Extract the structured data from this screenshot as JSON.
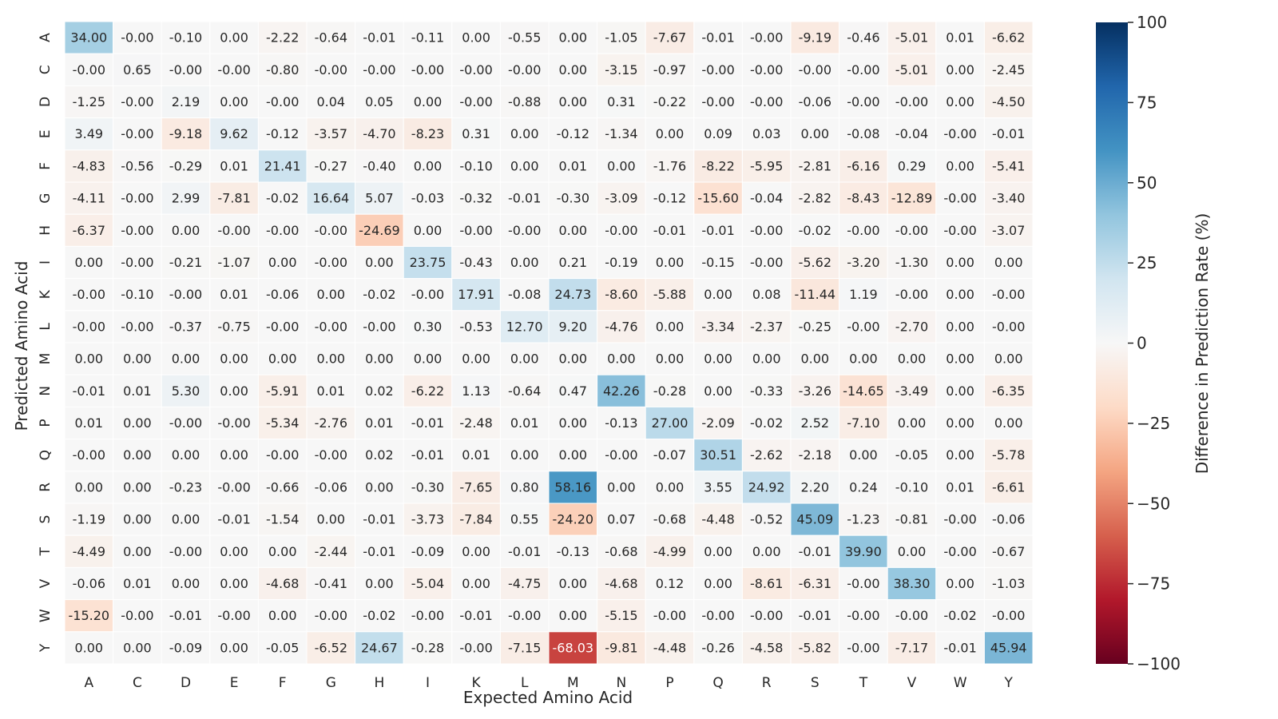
{
  "chart_data": {
    "type": "heatmap",
    "xlabel": "Expected Amino Acid",
    "ylabel": "Predicted Amino Acid",
    "x_categories": [
      "A",
      "C",
      "D",
      "E",
      "F",
      "G",
      "H",
      "I",
      "K",
      "L",
      "M",
      "N",
      "P",
      "Q",
      "R",
      "S",
      "T",
      "V",
      "W",
      "Y"
    ],
    "y_categories": [
      "A",
      "C",
      "D",
      "E",
      "F",
      "G",
      "H",
      "I",
      "K",
      "L",
      "M",
      "N",
      "P",
      "Q",
      "R",
      "S",
      "T",
      "V",
      "W",
      "Y"
    ],
    "values": [
      [
        "34.00",
        "-0.00",
        "-0.10",
        "0.00",
        "-2.22",
        "-0.64",
        "-0.01",
        "-0.11",
        "0.00",
        "-0.55",
        "0.00",
        "-1.05",
        "-7.67",
        "-0.01",
        "-0.00",
        "-9.19",
        "-0.46",
        "-5.01",
        "0.01",
        "-6.62"
      ],
      [
        "-0.00",
        "0.65",
        "-0.00",
        "-0.00",
        "-0.80",
        "-0.00",
        "-0.00",
        "-0.00",
        "-0.00",
        "-0.00",
        "0.00",
        "-3.15",
        "-0.97",
        "-0.00",
        "-0.00",
        "-0.00",
        "-0.00",
        "-5.01",
        "0.00",
        "-2.45"
      ],
      [
        "-1.25",
        "-0.00",
        "2.19",
        "0.00",
        "-0.00",
        "0.04",
        "0.05",
        "0.00",
        "-0.00",
        "-0.88",
        "0.00",
        "0.31",
        "-0.22",
        "-0.00",
        "-0.00",
        "-0.06",
        "-0.00",
        "-0.00",
        "0.00",
        "-4.50"
      ],
      [
        "3.49",
        "-0.00",
        "-9.18",
        "9.62",
        "-0.12",
        "-3.57",
        "-4.70",
        "-8.23",
        "0.31",
        "0.00",
        "-0.12",
        "-1.34",
        "0.00",
        "0.09",
        "0.03",
        "0.00",
        "-0.08",
        "-0.04",
        "-0.00",
        "-0.01"
      ],
      [
        "-4.83",
        "-0.56",
        "-0.29",
        "0.01",
        "21.41",
        "-0.27",
        "-0.40",
        "0.00",
        "-0.10",
        "0.00",
        "0.01",
        "0.00",
        "-1.76",
        "-8.22",
        "-5.95",
        "-2.81",
        "-6.16",
        "0.29",
        "0.00",
        "-5.41"
      ],
      [
        "-4.11",
        "-0.00",
        "2.99",
        "-7.81",
        "-0.02",
        "16.64",
        "5.07",
        "-0.03",
        "-0.32",
        "-0.01",
        "-0.30",
        "-3.09",
        "-0.12",
        "-15.60",
        "-0.04",
        "-2.82",
        "-8.43",
        "-12.89",
        "-0.00",
        "-3.40"
      ],
      [
        "-6.37",
        "-0.00",
        "0.00",
        "-0.00",
        "-0.00",
        "-0.00",
        "-24.69",
        "0.00",
        "-0.00",
        "-0.00",
        "0.00",
        "-0.00",
        "-0.01",
        "-0.01",
        "-0.00",
        "-0.02",
        "-0.00",
        "-0.00",
        "-0.00",
        "-3.07"
      ],
      [
        "0.00",
        "-0.00",
        "-0.21",
        "-1.07",
        "0.00",
        "-0.00",
        "0.00",
        "23.75",
        "-0.43",
        "0.00",
        "0.21",
        "-0.19",
        "0.00",
        "-0.15",
        "-0.00",
        "-5.62",
        "-3.20",
        "-1.30",
        "0.00",
        "0.00"
      ],
      [
        "-0.00",
        "-0.10",
        "-0.00",
        "0.01",
        "-0.06",
        "0.00",
        "-0.02",
        "-0.00",
        "17.91",
        "-0.08",
        "24.73",
        "-8.60",
        "-5.88",
        "0.00",
        "0.08",
        "-11.44",
        "1.19",
        "-0.00",
        "0.00",
        "-0.00"
      ],
      [
        "-0.00",
        "-0.00",
        "-0.37",
        "-0.75",
        "-0.00",
        "-0.00",
        "-0.00",
        "0.30",
        "-0.53",
        "12.70",
        "9.20",
        "-4.76",
        "0.00",
        "-3.34",
        "-2.37",
        "-0.25",
        "-0.00",
        "-2.70",
        "0.00",
        "-0.00"
      ],
      [
        "0.00",
        "0.00",
        "0.00",
        "0.00",
        "0.00",
        "0.00",
        "0.00",
        "0.00",
        "0.00",
        "0.00",
        "0.00",
        "0.00",
        "0.00",
        "0.00",
        "0.00",
        "0.00",
        "0.00",
        "0.00",
        "0.00",
        "0.00"
      ],
      [
        "-0.01",
        "0.01",
        "5.30",
        "0.00",
        "-5.91",
        "0.01",
        "0.02",
        "-6.22",
        "1.13",
        "-0.64",
        "0.47",
        "42.26",
        "-0.28",
        "0.00",
        "-0.33",
        "-3.26",
        "-14.65",
        "-3.49",
        "0.00",
        "-6.35"
      ],
      [
        "0.01",
        "0.00",
        "-0.00",
        "-0.00",
        "-5.34",
        "-2.76",
        "0.01",
        "-0.01",
        "-2.48",
        "0.01",
        "0.00",
        "-0.13",
        "27.00",
        "-2.09",
        "-0.02",
        "2.52",
        "-7.10",
        "0.00",
        "0.00",
        "0.00"
      ],
      [
        "-0.00",
        "0.00",
        "0.00",
        "0.00",
        "-0.00",
        "-0.00",
        "0.02",
        "-0.01",
        "0.01",
        "0.00",
        "0.00",
        "-0.00",
        "-0.07",
        "30.51",
        "-2.62",
        "-2.18",
        "0.00",
        "-0.05",
        "0.00",
        "-5.78"
      ],
      [
        "0.00",
        "0.00",
        "-0.23",
        "-0.00",
        "-0.66",
        "-0.06",
        "0.00",
        "-0.30",
        "-7.65",
        "0.80",
        "58.16",
        "0.00",
        "0.00",
        "3.55",
        "24.92",
        "2.20",
        "0.24",
        "-0.10",
        "0.01",
        "-6.61"
      ],
      [
        "-1.19",
        "0.00",
        "0.00",
        "-0.01",
        "-1.54",
        "0.00",
        "-0.01",
        "-3.73",
        "-7.84",
        "0.55",
        "-24.20",
        "0.07",
        "-0.68",
        "-4.48",
        "-0.52",
        "45.09",
        "-1.23",
        "-0.81",
        "-0.00",
        "-0.06"
      ],
      [
        "-4.49",
        "0.00",
        "-0.00",
        "0.00",
        "0.00",
        "-2.44",
        "-0.01",
        "-0.09",
        "0.00",
        "-0.01",
        "-0.13",
        "-0.68",
        "-4.99",
        "0.00",
        "0.00",
        "-0.01",
        "39.90",
        "0.00",
        "-0.00",
        "-0.67"
      ],
      [
        "-0.06",
        "0.01",
        "0.00",
        "0.00",
        "-4.68",
        "-0.41",
        "0.00",
        "-5.04",
        "0.00",
        "-4.75",
        "0.00",
        "-4.68",
        "0.12",
        "0.00",
        "-8.61",
        "-6.31",
        "-0.00",
        "38.30",
        "0.00",
        "-1.03"
      ],
      [
        "-15.20",
        "-0.00",
        "-0.01",
        "-0.00",
        "0.00",
        "-0.00",
        "-0.02",
        "-0.00",
        "-0.01",
        "-0.00",
        "0.00",
        "-5.15",
        "-0.00",
        "-0.00",
        "-0.00",
        "-0.01",
        "-0.00",
        "-0.00",
        "-0.02",
        "-0.00"
      ],
      [
        "0.00",
        "0.00",
        "-0.09",
        "0.00",
        "-0.05",
        "-6.52",
        "24.67",
        "-0.28",
        "-0.00",
        "-7.15",
        "-68.03",
        "-9.81",
        "-4.48",
        "-0.26",
        "-4.58",
        "-5.82",
        "-0.00",
        "-7.17",
        "-0.01",
        "45.94"
      ]
    ],
    "colorbar": {
      "label": "Difference in Prediction Rate (%)",
      "range": [
        -100,
        100
      ],
      "ticks": [
        "100",
        "75",
        "50",
        "25",
        "0",
        "−25",
        "−50",
        "−75",
        "−100"
      ],
      "colormap": "RdBu"
    },
    "colors": {
      "cell_border": "#ffffff",
      "text_dark": "#262626",
      "text_light": "#ffffff"
    }
  }
}
